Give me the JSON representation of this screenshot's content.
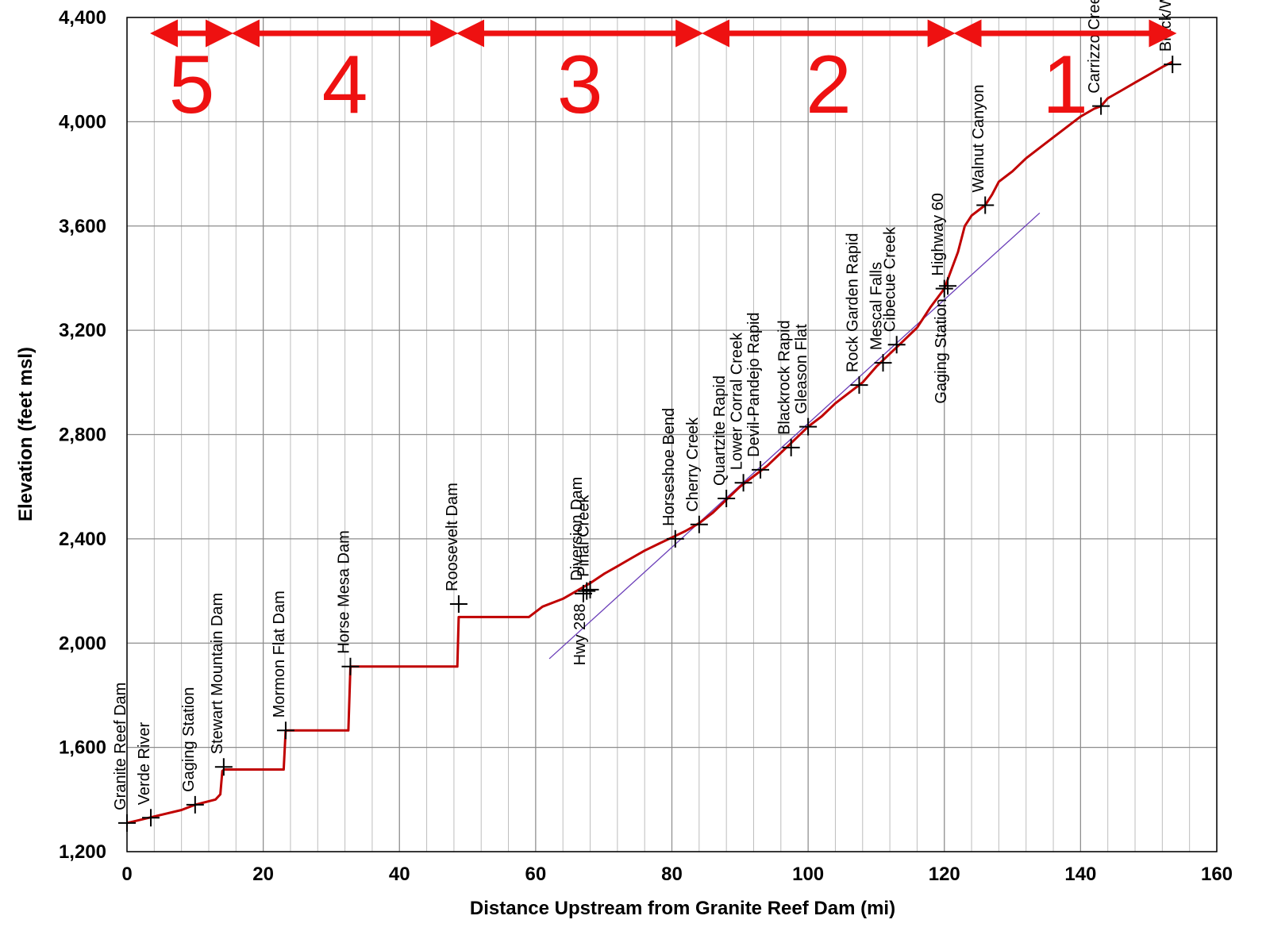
{
  "chart_data": {
    "type": "line",
    "title": "",
    "xlabel": "Distance Upstream from Granite Reef Dam (mi)",
    "ylabel": "Elevation (feet msl)",
    "xlim": [
      0,
      160
    ],
    "ylim": [
      1200,
      4400
    ],
    "x_ticks": [
      0,
      20,
      40,
      60,
      80,
      100,
      120,
      140,
      160
    ],
    "x_tick_labels": [
      "0",
      "20",
      "40",
      "60",
      "80",
      "100",
      "120",
      "140",
      "160"
    ],
    "y_ticks": [
      1200,
      1600,
      2000,
      2400,
      2800,
      3200,
      3600,
      4000,
      4400
    ],
    "y_tick_labels": [
      "1,200",
      "1,600",
      "2,000",
      "2,400",
      "2,800",
      "3,200",
      "3,600",
      "4,000",
      "4,400"
    ],
    "minor_x_step": 4,
    "grid": true,
    "series": [
      {
        "color": "#c00000",
        "x": [
          0,
          4,
          8,
          10,
          13,
          13.7,
          14,
          14.3,
          23,
          23.3,
          32.5,
          32.8,
          48.5,
          48.7,
          59,
          61,
          64,
          66,
          68,
          70,
          72,
          74,
          76,
          78,
          80,
          82,
          84,
          86,
          88,
          90,
          92,
          94,
          96,
          98,
          100,
          102,
          104,
          106,
          108,
          110,
          112,
          114,
          116,
          118,
          120,
          121,
          122,
          123,
          124,
          125,
          126,
          127,
          128,
          130,
          132,
          134,
          136,
          138,
          140,
          142,
          143,
          144,
          146,
          148,
          150,
          152,
          153.5
        ],
        "y": [
          1310,
          1335,
          1360,
          1380,
          1400,
          1420,
          1510,
          1515,
          1515,
          1665,
          1665,
          1910,
          1910,
          2100,
          2100,
          2140,
          2170,
          2200,
          2230,
          2265,
          2295,
          2325,
          2355,
          2380,
          2405,
          2430,
          2460,
          2500,
          2550,
          2600,
          2640,
          2680,
          2730,
          2780,
          2830,
          2870,
          2920,
          2960,
          3000,
          3060,
          3110,
          3160,
          3210,
          3290,
          3360,
          3430,
          3500,
          3600,
          3640,
          3660,
          3680,
          3720,
          3770,
          3810,
          3860,
          3900,
          3940,
          3980,
          4020,
          4050,
          4060,
          4090,
          4120,
          4150,
          4180,
          4210,
          4230
        ]
      }
    ],
    "trend_line": {
      "color": "#6a3db8",
      "from": [
        62,
        1940
      ],
      "to": [
        134,
        3650
      ]
    },
    "markers": [
      {
        "x": 0,
        "y": 1310,
        "label": "Granite Reef Dam"
      },
      {
        "x": 3.5,
        "y": 1330,
        "label": "Verde River"
      },
      {
        "x": 10,
        "y": 1380,
        "label": "Gaging Station"
      },
      {
        "x": 14.2,
        "y": 1525,
        "label": "Stewart Mountain Dam"
      },
      {
        "x": 23.3,
        "y": 1665,
        "label": "Mormon Flat Dam"
      },
      {
        "x": 32.8,
        "y": 1910,
        "label": "Horse Mesa Dam"
      },
      {
        "x": 48.7,
        "y": 2150,
        "label": "Roosevelt Dam"
      },
      {
        "x": 67,
        "y": 2190,
        "label": "Diversion Dam"
      },
      {
        "x": 68,
        "y": 2205,
        "label": "Pinal Creek"
      },
      {
        "x": 67.5,
        "y": 2200,
        "label": "Hwy 288",
        "below": true
      },
      {
        "x": 80.5,
        "y": 2400,
        "label": "Horseshoe Bend"
      },
      {
        "x": 84,
        "y": 2455,
        "label": "Cherry Creek"
      },
      {
        "x": 88,
        "y": 2555,
        "label": "Quartzite Rapid"
      },
      {
        "x": 90.5,
        "y": 2615,
        "label": "Lower Corral Creek"
      },
      {
        "x": 93,
        "y": 2665,
        "label": "Devil-Pandejo Rapid"
      },
      {
        "x": 97.5,
        "y": 2750,
        "label": "Blackrock Rapid"
      },
      {
        "x": 100,
        "y": 2830,
        "label": "Gleason Flat"
      },
      {
        "x": 107.5,
        "y": 2990,
        "label": "Rock Garden Rapid"
      },
      {
        "x": 111,
        "y": 3075,
        "label": "Mescal Falls"
      },
      {
        "x": 113,
        "y": 3145,
        "label": "Cibecue Creek"
      },
      {
        "x": 120,
        "y": 3360,
        "label": "Highway 60"
      },
      {
        "x": 120.5,
        "y": 3370,
        "label": "Gaging Station",
        "below": true
      },
      {
        "x": 126,
        "y": 3680,
        "label": "Walnut Canyon"
      },
      {
        "x": 143,
        "y": 4060,
        "label": "Carrizzo Creek"
      },
      {
        "x": 153.5,
        "y": 4220,
        "label": "Black/White River Confluence"
      }
    ],
    "reaches": [
      {
        "label": "5",
        "from": 3.5,
        "to": 15.5
      },
      {
        "label": "4",
        "from": 15.5,
        "to": 48.5
      },
      {
        "label": "3",
        "from": 48.5,
        "to": 84.5
      },
      {
        "label": "2",
        "from": 84.5,
        "to": 121.5
      },
      {
        "label": "1",
        "from": 121.5,
        "to": 154
      }
    ]
  }
}
